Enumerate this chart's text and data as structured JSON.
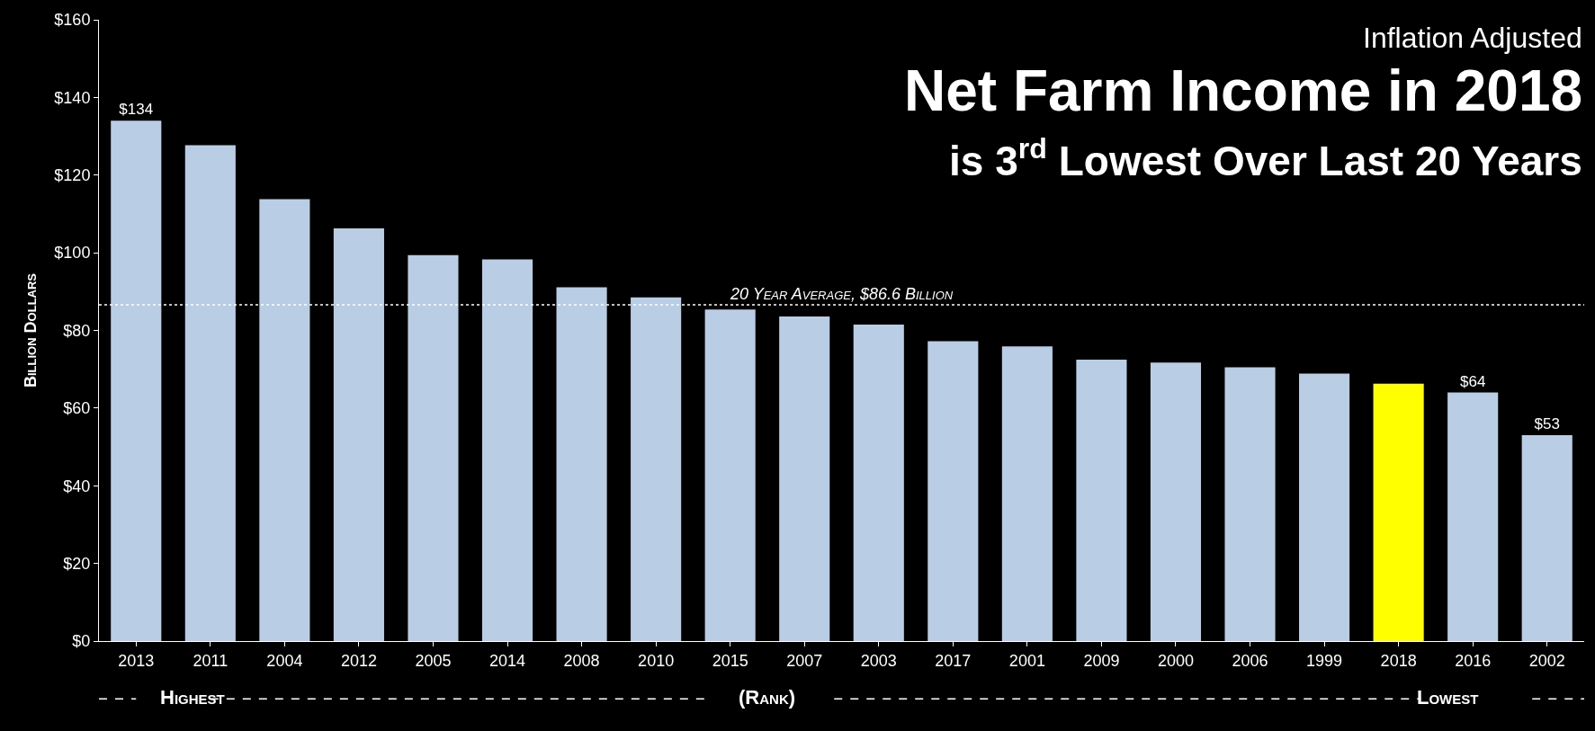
{
  "chart_data": {
    "type": "bar",
    "title": "Inflation Adjusted\nNet Farm Income in 2018\nis 3$^{rd}$ Lowest Over Last 20 Years",
    "ylabel": "Billion Dollars",
    "categories": [
      "2013",
      "2011",
      "2004",
      "2012",
      "2005",
      "2014",
      "2008",
      "2010",
      "2015",
      "2007",
      "2003",
      "2017",
      "2001",
      "2009",
      "2000",
      "2006",
      "1999",
      "2018",
      "2016",
      "2002"
    ],
    "values": [
      134,
      127.7,
      113.8,
      106.3,
      99.4,
      98.3,
      91.1,
      88.5,
      85.4,
      83.6,
      81.5,
      77.2,
      75.9,
      72.5,
      71.7,
      70.5,
      68.9,
      66.3,
      64,
      53
    ],
    "colors": [
      "#b9cde5",
      "#b9cde5",
      "#b9cde5",
      "#b9cde5",
      "#b9cde5",
      "#b9cde5",
      "#b9cde5",
      "#b9cde5",
      "#b9cde5",
      "#b9cde5",
      "#b9cde5",
      "#b9cde5",
      "#b9cde5",
      "#b9cde5",
      "#b9cde5",
      "#b9cde5",
      "#b9cde5",
      "#ffff00",
      "#b9cde5",
      "#b9cde5"
    ],
    "value_labels": [
      "$134",
      null,
      null,
      null,
      null,
      null,
      null,
      null,
      null,
      null,
      null,
      null,
      null,
      null,
      null,
      null,
      null,
      null,
      "$64",
      "$53"
    ],
    "ylim": [
      0,
      160
    ],
    "yticks": [
      {
        "value": 0,
        "label": "$0"
      },
      {
        "value": 20,
        "label": "$20"
      },
      {
        "value": 40,
        "label": "$40"
      },
      {
        "value": 60,
        "label": "$60"
      },
      {
        "value": 80,
        "label": "$80"
      },
      {
        "value": 100,
        "label": "$100"
      },
      {
        "value": 120,
        "label": "$120"
      },
      {
        "value": 140,
        "label": "$140"
      },
      {
        "value": 160,
        "label": "$160"
      }
    ],
    "ref_lines": [
      {
        "axis": "y",
        "value": 86.6,
        "label": "20 Year Average, $86.6 Billion",
        "color": "#ffffff",
        "line_style": "dotted"
      }
    ],
    "annotations": [
      "Highest",
      "(Rank)",
      "Lowest"
    ],
    "grid": false,
    "legend": false
  }
}
